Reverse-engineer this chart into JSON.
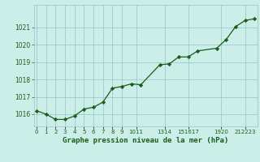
{
  "x": [
    0,
    1,
    2,
    3,
    4,
    5,
    6,
    7,
    8,
    9,
    10,
    11,
    13,
    14,
    15,
    16,
    17,
    19,
    20,
    21,
    22,
    23
  ],
  "y": [
    1016.2,
    1016.0,
    1015.7,
    1015.7,
    1015.9,
    1016.3,
    1016.4,
    1016.7,
    1017.5,
    1017.6,
    1017.75,
    1017.7,
    1018.85,
    1018.9,
    1019.3,
    1019.3,
    1019.65,
    1019.8,
    1020.3,
    1021.05,
    1021.4,
    1021.5
  ],
  "ylim": [
    1015.3,
    1022.3
  ],
  "xlim": [
    -0.3,
    23.3
  ],
  "yticks": [
    1016,
    1017,
    1018,
    1019,
    1020,
    1021
  ],
  "xtick_labels": [
    "0",
    "1",
    "2",
    "3",
    "4",
    "5",
    "6",
    "7",
    "8",
    "9",
    "1011",
    "1314",
    "151617",
    "1920",
    "212223"
  ],
  "xtick_positions": [
    0,
    1,
    2,
    3,
    4,
    5,
    6,
    7,
    8,
    9,
    10.5,
    13.5,
    16,
    19.5,
    22
  ],
  "line_color": "#1a5c1a",
  "marker_color": "#1a5c1a",
  "bg_color": "#cceee8",
  "grid_color": "#99cccc",
  "xlabel": "Graphe pression niveau de la mer (hPa)",
  "xlabel_color": "#1a5c1a"
}
